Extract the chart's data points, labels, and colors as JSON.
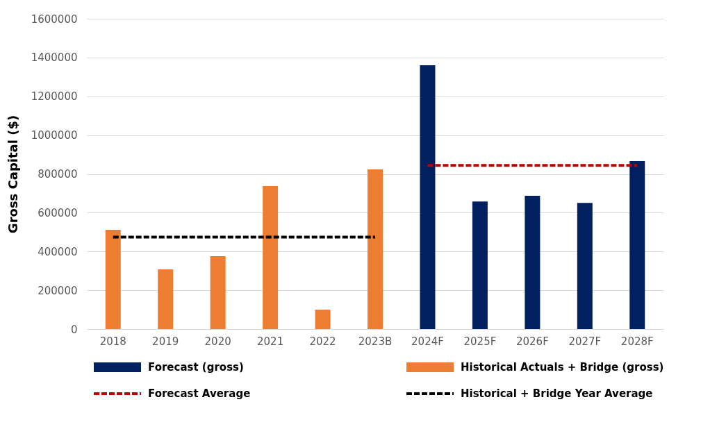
{
  "chart_data": {
    "type": "bar",
    "ylabel": "Gross Capital ($)",
    "categories": [
      "2018",
      "2019",
      "2020",
      "2021",
      "2022",
      "2023B",
      "2024F",
      "2025F",
      "2026F",
      "2027F",
      "2028F"
    ],
    "series": [
      {
        "name": "Forecast (gross)",
        "color": "#002060",
        "values": [
          null,
          null,
          null,
          null,
          null,
          null,
          1360000,
          658000,
          687000,
          651000,
          866000
        ]
      },
      {
        "name": "Historical Actuals + Bridge (gross)",
        "color": "#ed7d31",
        "values": [
          512000,
          308000,
          376000,
          737000,
          100000,
          823000,
          null,
          null,
          null,
          null,
          null
        ]
      },
      {
        "name": "Forecast Average",
        "type": "line",
        "line_style": "dashed",
        "color": "#c00000",
        "values": [
          null,
          null,
          null,
          null,
          null,
          null,
          844000,
          844000,
          844000,
          844000,
          844000
        ]
      },
      {
        "name": "Historical + Bridge Year Average",
        "type": "line",
        "line_style": "dashed",
        "color": "#000000",
        "values": [
          474000,
          474000,
          474000,
          474000,
          474000,
          474000,
          null,
          null,
          null,
          null,
          null
        ]
      }
    ],
    "ylim": [
      0,
      1600000
    ],
    "yticks": [
      0,
      200000,
      400000,
      600000,
      800000,
      1000000,
      1200000,
      1400000,
      1600000
    ],
    "grid": "y",
    "legend": "bottom"
  }
}
